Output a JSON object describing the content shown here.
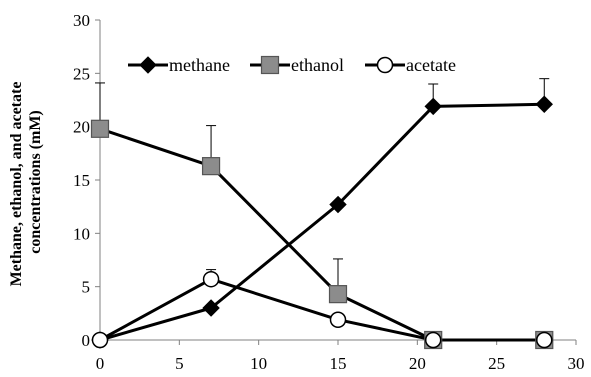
{
  "chart_data": {
    "type": "line",
    "title": "",
    "xlabel": "",
    "ylabel_line1": "Methane, ethanol, and acetate",
    "ylabel_line2": "concentrations (mM)",
    "xlim": [
      0,
      30
    ],
    "ylim": [
      0,
      30
    ],
    "x_ticks": [
      "0",
      "5",
      "10",
      "15",
      "20",
      "25",
      "30"
    ],
    "y_ticks": [
      "0",
      "5",
      "10",
      "15",
      "20",
      "25",
      "30"
    ],
    "grid": false,
    "legend_position": "top",
    "series": [
      {
        "name": "methane",
        "marker": "diamond",
        "marker_color": "#000000",
        "x": [
          0,
          7,
          15,
          21,
          28
        ],
        "y": [
          0,
          3.0,
          12.7,
          21.9,
          22.1
        ],
        "err": [
          0,
          0,
          0,
          2.1,
          2.4
        ]
      },
      {
        "name": "ethanol",
        "marker": "square",
        "marker_color": "#8c8c8c",
        "x": [
          0,
          7,
          15,
          21,
          28
        ],
        "y": [
          19.8,
          16.3,
          4.3,
          0,
          0
        ],
        "err": [
          4.3,
          3.8,
          3.3,
          0,
          0
        ]
      },
      {
        "name": "acetate",
        "marker": "circle",
        "marker_color": "#ffffff",
        "x": [
          0,
          7,
          15,
          21,
          28
        ],
        "y": [
          0,
          5.7,
          1.9,
          0,
          0
        ],
        "err": [
          0,
          0.9,
          0,
          0,
          0
        ]
      }
    ]
  }
}
